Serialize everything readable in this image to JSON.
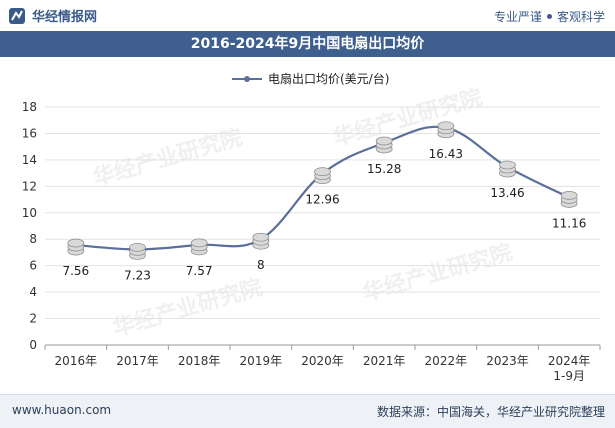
{
  "header": {
    "brand_name": "华经情报网",
    "tagline_left": "专业严谨",
    "tagline_right": "客观科学",
    "title": "2016-2024年9月中国电扇出口均价"
  },
  "footer": {
    "url": "www.huaon.com",
    "source": "数据来源：中国海关，华经产业研究院整理"
  },
  "watermark": "华经产业研究院",
  "chart_data": {
    "type": "line",
    "title": "2016-2024年9月中国电扇出口均价",
    "categories": [
      "2016年",
      "2017年",
      "2018年",
      "2019年",
      "2020年",
      "2021年",
      "2022年",
      "2023年",
      "2024年\n1-9月"
    ],
    "series": [
      {
        "name": "电扇出口均价(美元/台)",
        "values": [
          7.56,
          7.23,
          7.57,
          8,
          12.96,
          15.28,
          16.43,
          13.46,
          11.16
        ],
        "color": "#5b6f9a"
      }
    ],
    "value_labels": [
      "7.56",
      "7.23",
      "7.57",
      "8",
      "12.96",
      "15.28",
      "16.43",
      "13.46",
      "11.16"
    ],
    "ylim": [
      0,
      18
    ],
    "yticks": [
      0,
      2,
      4,
      6,
      8,
      10,
      12,
      14,
      16,
      18
    ],
    "grid": true,
    "legend_position": "top-center",
    "colors": {
      "titlebar": "#3f5f8f",
      "brand": "#3a5b8a"
    }
  }
}
